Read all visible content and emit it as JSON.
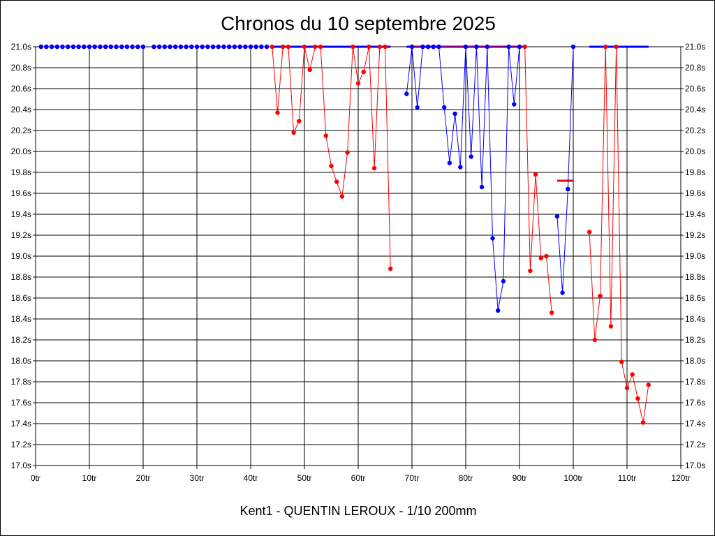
{
  "chart_data": {
    "type": "line",
    "title": "Chronos du 10 septembre 2025",
    "subtitle": "Kent1 - QUENTIN LEROUX - 1/10 200mm",
    "xlabel": "",
    "ylabel": "",
    "xlim": [
      0,
      120
    ],
    "ylim": [
      17.0,
      21.0
    ],
    "x_ticks": [
      0,
      10,
      20,
      30,
      40,
      50,
      60,
      70,
      80,
      90,
      100,
      110,
      120
    ],
    "x_tick_labels": [
      "0tr",
      "10tr",
      "20tr",
      "30tr",
      "40tr",
      "50tr",
      "60tr",
      "70tr",
      "80tr",
      "90tr",
      "100tr",
      "110tr",
      "120tr"
    ],
    "y_ticks": [
      17.0,
      17.2,
      17.4,
      17.6,
      17.8,
      18.0,
      18.2,
      18.4,
      18.6,
      18.8,
      19.0,
      19.2,
      19.4,
      19.6,
      19.8,
      20.0,
      20.2,
      20.4,
      20.6,
      20.8,
      21.0
    ],
    "y_tick_labels": [
      "17.0s",
      "17.2s",
      "17.4s",
      "17.6s",
      "17.8s",
      "18.0s",
      "18.2s",
      "18.4s",
      "18.6s",
      "18.8s",
      "19.0s",
      "19.2s",
      "19.4s",
      "19.6s",
      "19.8s",
      "20.0s",
      "20.2s",
      "20.4s",
      "20.6s",
      "20.8s",
      "21.0s"
    ],
    "grid": true,
    "series": [
      {
        "color": "#ff0000",
        "segments": [
          [
            [
              1,
              21.0
            ],
            [
              2,
              21.0
            ],
            [
              3,
              21.0
            ],
            [
              4,
              21.0
            ],
            [
              5,
              21.0
            ],
            [
              6,
              21.0
            ],
            [
              7,
              21.0
            ],
            [
              8,
              21.0
            ],
            [
              9,
              21.0
            ],
            [
              10,
              21.0
            ],
            [
              11,
              21.0
            ],
            [
              12,
              21.0
            ],
            [
              13,
              21.0
            ],
            [
              14,
              21.0
            ],
            [
              15,
              21.0
            ],
            [
              16,
              21.0
            ],
            [
              17,
              21.0
            ],
            [
              18,
              21.0
            ],
            [
              19,
              21.0
            ],
            [
              20,
              21.0
            ]
          ],
          [
            [
              22,
              21.0
            ],
            [
              23,
              21.0
            ],
            [
              24,
              21.0
            ],
            [
              25,
              21.0
            ],
            [
              26,
              21.0
            ],
            [
              27,
              21.0
            ],
            [
              28,
              21.0
            ],
            [
              29,
              21.0
            ],
            [
              30,
              21.0
            ],
            [
              31,
              21.0
            ],
            [
              32,
              21.0
            ],
            [
              33,
              21.0
            ],
            [
              34,
              21.0
            ],
            [
              35,
              21.0
            ],
            [
              36,
              21.0
            ],
            [
              37,
              21.0
            ],
            [
              38,
              21.0
            ],
            [
              39,
              21.0
            ],
            [
              40,
              21.0
            ],
            [
              41,
              21.0
            ],
            [
              42,
              21.0
            ],
            [
              43,
              21.0
            ],
            [
              44,
              21.0
            ],
            [
              45,
              20.37
            ],
            [
              46,
              21.0
            ],
            [
              47,
              21.0
            ],
            [
              48,
              20.18
            ],
            [
              49,
              20.29
            ],
            [
              50,
              21.0
            ],
            [
              51,
              20.78
            ],
            [
              52,
              21.0
            ],
            [
              53,
              21.0
            ],
            [
              54,
              20.15
            ],
            [
              55,
              19.86
            ],
            [
              56,
              19.71
            ],
            [
              57,
              19.57
            ],
            [
              58,
              19.99
            ],
            [
              59,
              21.0
            ],
            [
              60,
              20.65
            ],
            [
              61,
              20.76
            ],
            [
              62,
              21.0
            ],
            [
              63,
              19.84
            ],
            [
              64,
              21.0
            ],
            [
              65,
              21.0
            ],
            [
              66,
              18.88
            ]
          ],
          [
            [
              70,
              21.0
            ],
            [
              72,
              21.0
            ],
            [
              73,
              21.0
            ],
            [
              74,
              21.0
            ],
            [
              75,
              21.0
            ],
            [
              80,
              21.0
            ],
            [
              82,
              21.0
            ],
            [
              84,
              21.0
            ],
            [
              88,
              21.0
            ],
            [
              90,
              21.0
            ],
            [
              91,
              21.0
            ],
            [
              92,
              18.86
            ],
            [
              93,
              19.78
            ],
            [
              94,
              18.98
            ],
            [
              95,
              19.0
            ],
            [
              96,
              18.46
            ]
          ],
          [
            [
              103,
              19.23
            ],
            [
              104,
              18.2
            ],
            [
              105,
              18.62
            ],
            [
              106,
              21.0
            ],
            [
              107,
              18.33
            ],
            [
              108,
              21.0
            ],
            [
              109,
              17.99
            ],
            [
              110,
              17.74
            ],
            [
              111,
              17.87
            ],
            [
              112,
              17.64
            ],
            [
              113,
              17.41
            ],
            [
              114,
              17.77
            ]
          ]
        ],
        "flat_marks": [
          [
            44,
            66,
            21.0
          ],
          [
            69,
            91,
            21.0
          ],
          [
            97,
            100,
            19.72
          ],
          [
            103,
            114,
            21.0
          ]
        ]
      },
      {
        "color": "#0000ff",
        "segments": [
          [
            [
              1,
              21.0
            ],
            [
              2,
              21.0
            ],
            [
              3,
              21.0
            ],
            [
              4,
              21.0
            ],
            [
              5,
              21.0
            ],
            [
              6,
              21.0
            ],
            [
              7,
              21.0
            ],
            [
              8,
              21.0
            ],
            [
              9,
              21.0
            ],
            [
              10,
              21.0
            ],
            [
              11,
              21.0
            ],
            [
              12,
              21.0
            ],
            [
              13,
              21.0
            ],
            [
              14,
              21.0
            ],
            [
              15,
              21.0
            ],
            [
              16,
              21.0
            ],
            [
              17,
              21.0
            ],
            [
              18,
              21.0
            ],
            [
              19,
              21.0
            ],
            [
              20,
              21.0
            ]
          ],
          [
            [
              22,
              21.0
            ],
            [
              23,
              21.0
            ],
            [
              24,
              21.0
            ],
            [
              25,
              21.0
            ],
            [
              26,
              21.0
            ],
            [
              27,
              21.0
            ],
            [
              28,
              21.0
            ],
            [
              29,
              21.0
            ],
            [
              30,
              21.0
            ],
            [
              31,
              21.0
            ],
            [
              32,
              21.0
            ],
            [
              33,
              21.0
            ],
            [
              34,
              21.0
            ],
            [
              35,
              21.0
            ],
            [
              36,
              21.0
            ],
            [
              37,
              21.0
            ],
            [
              38,
              21.0
            ],
            [
              39,
              21.0
            ],
            [
              40,
              21.0
            ],
            [
              41,
              21.0
            ],
            [
              42,
              21.0
            ],
            [
              43,
              21.0
            ]
          ],
          [
            [
              69,
              20.55
            ],
            [
              70,
              21.0
            ],
            [
              71,
              20.42
            ],
            [
              72,
              21.0
            ],
            [
              73,
              21.0
            ],
            [
              74,
              21.0
            ],
            [
              75,
              21.0
            ],
            [
              76,
              20.42
            ],
            [
              77,
              19.89
            ],
            [
              78,
              20.36
            ],
            [
              79,
              19.85
            ],
            [
              80,
              21.0
            ],
            [
              81,
              19.95
            ],
            [
              82,
              21.0
            ],
            [
              83,
              19.66
            ],
            [
              84,
              21.0
            ],
            [
              85,
              19.17
            ],
            [
              86,
              18.48
            ],
            [
              87,
              18.76
            ],
            [
              88,
              21.0
            ],
            [
              89,
              20.45
            ],
            [
              90,
              21.0
            ]
          ],
          [
            [
              97,
              19.38
            ],
            [
              98,
              18.65
            ],
            [
              99,
              19.64
            ],
            [
              100,
              21.0
            ]
          ]
        ],
        "flat_marks": [
          [
            44,
            66,
            21.0
          ],
          [
            69,
            91,
            21.0
          ],
          [
            103,
            114,
            21.0
          ]
        ]
      }
    ]
  }
}
